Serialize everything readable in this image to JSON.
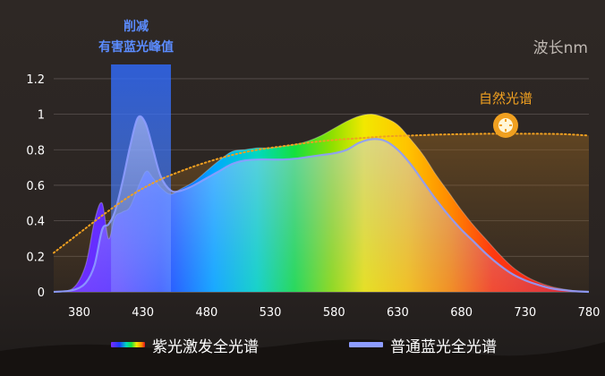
{
  "chart_data": {
    "type": "area",
    "x_unit_label": "波长nm",
    "xticks": [
      380,
      430,
      480,
      530,
      580,
      630,
      680,
      730,
      780
    ],
    "yticks": [
      "0",
      "0.2",
      "0.4",
      "0.6",
      "0.8",
      "1",
      "1.2"
    ],
    "xlim": [
      360,
      780
    ],
    "ylim": [
      0,
      1.25
    ],
    "grid": true,
    "annotations": {
      "blue_peak_title_line1": "削减",
      "blue_peak_title_line2": "有害蓝光峰值",
      "natural_label": "自然光谱",
      "blue_band_x": [
        405,
        452
      ]
    },
    "series": [
      {
        "name": "紫光激发全光谱",
        "x": [
          360,
          375,
          385,
          392,
          398,
          403,
          408,
          414,
          420,
          428,
          433,
          438,
          445,
          452,
          460,
          470,
          480,
          490,
          500,
          510,
          520,
          530,
          540,
          550,
          560,
          570,
          580,
          590,
          600,
          610,
          620,
          630,
          640,
          650,
          660,
          670,
          680,
          690,
          700,
          710,
          720,
          730,
          740,
          750,
          760,
          770,
          780
        ],
        "values": [
          0,
          0.02,
          0.15,
          0.4,
          0.5,
          0.3,
          0.42,
          0.45,
          0.48,
          0.62,
          0.68,
          0.64,
          0.58,
          0.55,
          0.58,
          0.62,
          0.68,
          0.74,
          0.79,
          0.8,
          0.81,
          0.81,
          0.82,
          0.83,
          0.85,
          0.88,
          0.92,
          0.96,
          0.99,
          1.0,
          0.98,
          0.94,
          0.86,
          0.77,
          0.66,
          0.56,
          0.46,
          0.37,
          0.29,
          0.21,
          0.14,
          0.09,
          0.055,
          0.03,
          0.015,
          0.005,
          0
        ]
      },
      {
        "name": "普通蓝光全光谱",
        "x": [
          360,
          375,
          385,
          392,
          398,
          403,
          408,
          414,
          420,
          426,
          432,
          438,
          444,
          452,
          460,
          470,
          480,
          490,
          500,
          510,
          520,
          530,
          540,
          550,
          560,
          570,
          580,
          590,
          600,
          610,
          620,
          630,
          640,
          650,
          660,
          670,
          680,
          690,
          700,
          710,
          720,
          730,
          740,
          750,
          760,
          770,
          780
        ],
        "values": [
          0,
          0.01,
          0.05,
          0.15,
          0.35,
          0.38,
          0.45,
          0.62,
          0.82,
          0.98,
          0.95,
          0.8,
          0.65,
          0.57,
          0.57,
          0.6,
          0.64,
          0.68,
          0.72,
          0.74,
          0.745,
          0.745,
          0.745,
          0.75,
          0.76,
          0.77,
          0.78,
          0.8,
          0.84,
          0.86,
          0.85,
          0.8,
          0.72,
          0.62,
          0.52,
          0.43,
          0.35,
          0.28,
          0.21,
          0.15,
          0.1,
          0.065,
          0.04,
          0.02,
          0.01,
          0.003,
          0
        ]
      },
      {
        "name": "自然光谱",
        "x": [
          360,
          380,
          400,
          420,
          440,
          460,
          480,
          500,
          520,
          540,
          560,
          580,
          600,
          620,
          640,
          660,
          680,
          700,
          720,
          740,
          760,
          780
        ],
        "values": [
          0.22,
          0.33,
          0.44,
          0.54,
          0.62,
          0.68,
          0.73,
          0.77,
          0.8,
          0.82,
          0.84,
          0.855,
          0.865,
          0.875,
          0.88,
          0.885,
          0.888,
          0.89,
          0.89,
          0.89,
          0.888,
          0.88
        ]
      }
    ]
  },
  "legend": {
    "item1_label": "紫光激发全光谱",
    "item2_label": "普通蓝光全光谱",
    "item2_color": "#8d9cff"
  },
  "colors": {
    "natural_line": "#f0a020",
    "blue_band": "#2f6bff",
    "grid": "#5a5250"
  }
}
